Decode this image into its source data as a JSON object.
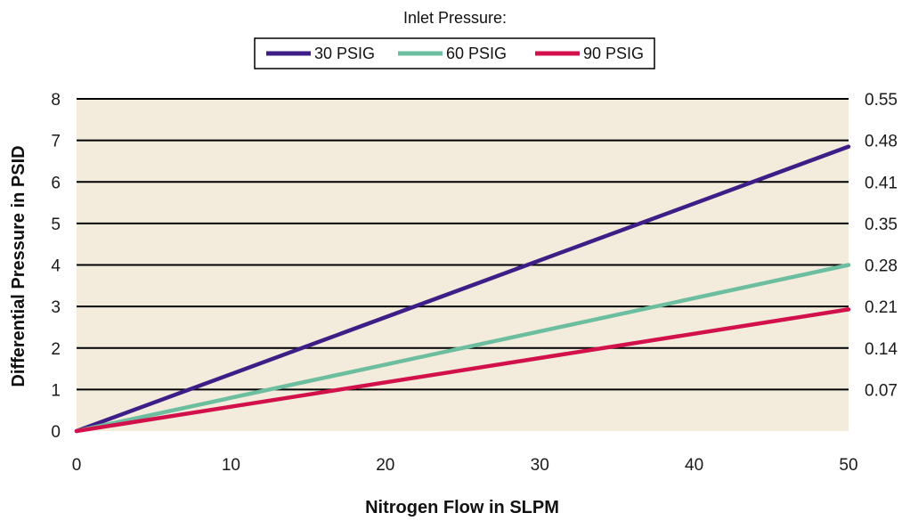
{
  "chart_data": {
    "type": "line",
    "legend_title": "Inlet Pressure:",
    "legend_position": "top-center",
    "xlabel": "Nitrogen Flow in SLPM",
    "ylabel": "Differential Pressure in PSID",
    "xlim": [
      0,
      50
    ],
    "ylim": [
      0,
      8
    ],
    "x_ticks": [
      "0",
      "10",
      "20",
      "30",
      "40",
      "50"
    ],
    "y_ticks": [
      "0",
      "1",
      "2",
      "3",
      "4",
      "5",
      "6",
      "7",
      "8"
    ],
    "y2_ticks": [
      "",
      "0.07",
      "0.14",
      "0.21",
      "0.28",
      "0.35",
      "0.41",
      "0.48",
      "0.55"
    ],
    "grid": "horizontal",
    "background_color": "#f3ecdc",
    "x": [
      0,
      50
    ],
    "series": [
      {
        "name": "30 PSIG",
        "color": "#3d1e86",
        "values": [
          0,
          6.85
        ]
      },
      {
        "name": "60 PSIG",
        "color": "#6dbea0",
        "values": [
          0,
          4.0
        ]
      },
      {
        "name": "90 PSIG",
        "color": "#d2114c",
        "values": [
          0,
          2.93
        ]
      }
    ]
  }
}
